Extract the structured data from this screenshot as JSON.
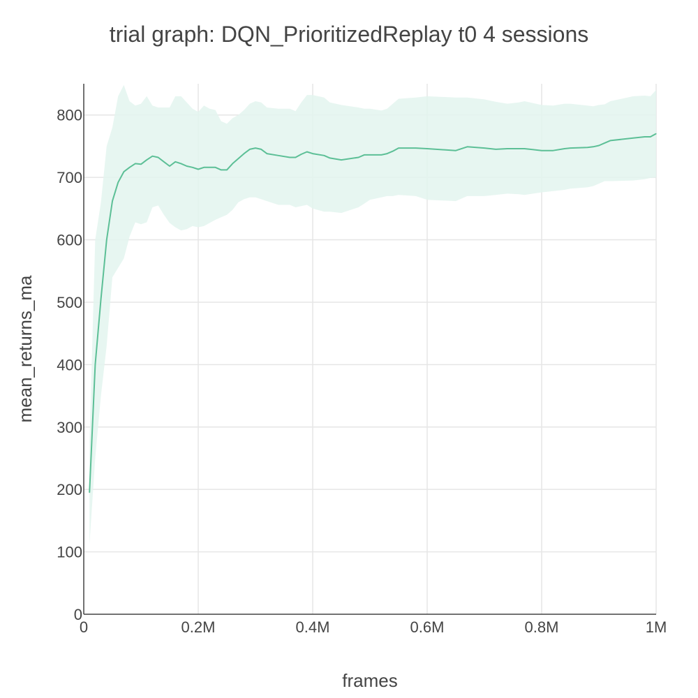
{
  "chart_data": {
    "type": "line",
    "title": "trial graph: DQN_PrioritizedReplay t0 4 sessions",
    "xlabel": "frames",
    "ylabel": "mean_returns_ma",
    "xlim": [
      0,
      1000000
    ],
    "ylim": [
      0,
      850
    ],
    "xticks": [
      {
        "value": 0,
        "label": "0"
      },
      {
        "value": 200000,
        "label": "0.2M"
      },
      {
        "value": 400000,
        "label": "0.4M"
      },
      {
        "value": 600000,
        "label": "0.6M"
      },
      {
        "value": 800000,
        "label": "0.8M"
      },
      {
        "value": 1000000,
        "label": "1M"
      }
    ],
    "yticks": [
      {
        "value": 0,
        "label": "0"
      },
      {
        "value": 100,
        "label": "100"
      },
      {
        "value": 200,
        "label": "200"
      },
      {
        "value": 300,
        "label": "300"
      },
      {
        "value": 400,
        "label": "400"
      },
      {
        "value": 500,
        "label": "500"
      },
      {
        "value": 600,
        "label": "600"
      },
      {
        "value": 700,
        "label": "700"
      },
      {
        "value": 800,
        "label": "800"
      }
    ],
    "grid": true,
    "legend": "none",
    "series": [
      {
        "color": "#5cbf96",
        "band_color": "#e3f4ee",
        "x": [
          10000,
          20000,
          30000,
          40000,
          50000,
          60000,
          70000,
          80000,
          90000,
          100000,
          110000,
          120000,
          130000,
          140000,
          150000,
          160000,
          170000,
          180000,
          190000,
          200000,
          210000,
          220000,
          230000,
          240000,
          250000,
          260000,
          270000,
          280000,
          290000,
          300000,
          310000,
          320000,
          340000,
          360000,
          370000,
          380000,
          390000,
          400000,
          420000,
          430000,
          450000,
          480000,
          490000,
          500000,
          520000,
          530000,
          540000,
          550000,
          580000,
          600000,
          650000,
          670000,
          700000,
          720000,
          740000,
          760000,
          770000,
          800000,
          820000,
          840000,
          850000,
          880000,
          890000,
          900000,
          910000,
          920000,
          960000,
          980000,
          990000,
          1000000
        ],
        "y": [
          195,
          400,
          505,
          600,
          662,
          692,
          709,
          716,
          722,
          721,
          728,
          734,
          732,
          725,
          718,
          725,
          722,
          718,
          716,
          713,
          716,
          716,
          716,
          712,
          712,
          722,
          730,
          738,
          745,
          747,
          745,
          738,
          735,
          732,
          732,
          737,
          741,
          738,
          735,
          731,
          728,
          732,
          736,
          736,
          736,
          738,
          742,
          747,
          747,
          746,
          743,
          749,
          747,
          745,
          746,
          746,
          746,
          743,
          743,
          746,
          747,
          748,
          749,
          751,
          755,
          759,
          763,
          765,
          765,
          770
        ],
        "upper": [
          275,
          600,
          660,
          750,
          780,
          830,
          848,
          822,
          815,
          818,
          830,
          815,
          812,
          812,
          812,
          830,
          830,
          820,
          810,
          805,
          815,
          810,
          808,
          790,
          786,
          795,
          800,
          808,
          818,
          822,
          820,
          812,
          810,
          810,
          806,
          820,
          832,
          832,
          828,
          820,
          816,
          812,
          810,
          810,
          807,
          810,
          818,
          826,
          828,
          830,
          828,
          828,
          825,
          821,
          818,
          820,
          822,
          816,
          815,
          818,
          818,
          815,
          814,
          816,
          817,
          822,
          830,
          831,
          830,
          840
        ],
        "lower": [
          112,
          250,
          350,
          430,
          540,
          555,
          570,
          605,
          628,
          625,
          628,
          652,
          655,
          640,
          627,
          620,
          615,
          617,
          622,
          620,
          622,
          627,
          632,
          636,
          640,
          648,
          660,
          665,
          668,
          668,
          665,
          662,
          656,
          656,
          652,
          654,
          656,
          650,
          645,
          645,
          643,
          652,
          658,
          664,
          668,
          670,
          670,
          672,
          670,
          664,
          662,
          670,
          670,
          672,
          674,
          673,
          672,
          676,
          678,
          680,
          682,
          684,
          686,
          690,
          694,
          694,
          695,
          697,
          699,
          700
        ]
      }
    ]
  }
}
